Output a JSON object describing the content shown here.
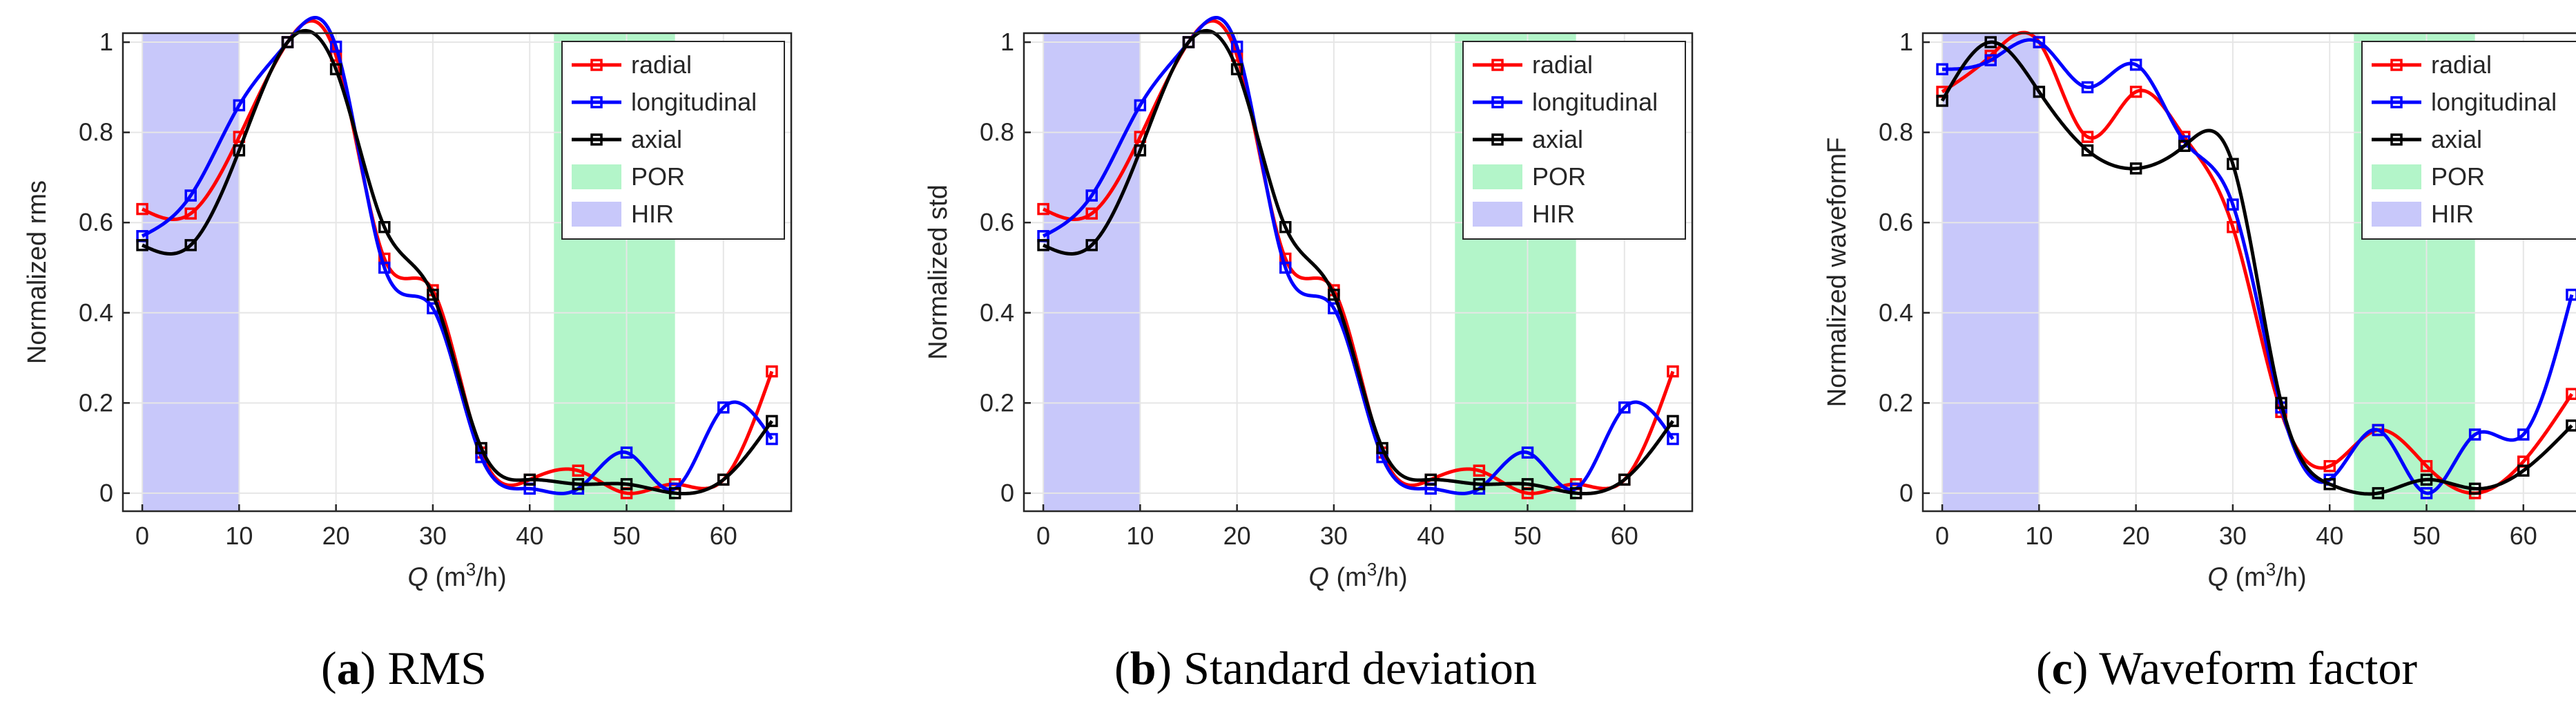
{
  "figure": {
    "colors": {
      "radial": "#ff0000",
      "longitudinal": "#0000ff",
      "axial": "#000000",
      "POR": "#b3f5c9",
      "HIR": "#c8c8fa",
      "grid": "#e6e6e6",
      "axis": "#262626"
    }
  },
  "chart_data": [
    {
      "type": "line",
      "panel": "a",
      "caption_letter": "a",
      "caption_text": ") RMS",
      "caption_open": "(",
      "ylabel": "Normalized rms",
      "xlabel_main": "Q",
      "xlabel_unit_open": " (m",
      "xlabel_sup": "3",
      "xlabel_unit_close": "/h)",
      "xlim": [
        -2,
        67
      ],
      "ylim": [
        -0.04,
        1.02
      ],
      "xticks": [
        0,
        10,
        20,
        30,
        40,
        50,
        60
      ],
      "yticks": [
        0,
        0.2,
        0.4,
        0.6,
        0.8,
        1
      ],
      "ytick_labels": [
        "0",
        "0.2",
        "0.4",
        "0.6",
        "0.8",
        "1"
      ],
      "x": [
        0,
        5,
        10,
        15,
        20,
        25,
        30,
        35,
        40,
        45,
        50,
        55,
        60,
        65
      ],
      "regions": [
        {
          "name": "HIR",
          "range": [
            0,
            10
          ]
        },
        {
          "name": "POR",
          "range": [
            42.5,
            55
          ]
        }
      ],
      "series": [
        {
          "name": "radial",
          "values": [
            0.63,
            0.62,
            0.79,
            1.0,
            0.97,
            0.52,
            0.45,
            0.09,
            0.03,
            0.05,
            0.0,
            0.02,
            0.03,
            0.27
          ]
        },
        {
          "name": "longitudinal",
          "values": [
            0.57,
            0.66,
            0.86,
            1.0,
            0.99,
            0.5,
            0.41,
            0.08,
            0.01,
            0.01,
            0.09,
            0.01,
            0.19,
            0.12
          ]
        },
        {
          "name": "axial",
          "values": [
            0.55,
            0.55,
            0.76,
            1.0,
            0.94,
            0.59,
            0.44,
            0.1,
            0.03,
            0.02,
            0.02,
            0.0,
            0.03,
            0.16
          ]
        }
      ],
      "legend": [
        "radial",
        "longitudinal",
        "axial",
        "POR",
        "HIR"
      ],
      "legend_position": "top-right"
    },
    {
      "type": "line",
      "panel": "b",
      "caption_letter": "b",
      "caption_text": ") Standard deviation",
      "caption_open": "(",
      "ylabel": "Normalized std",
      "xlabel_main": "Q",
      "xlabel_unit_open": " (m",
      "xlabel_sup": "3",
      "xlabel_unit_close": "/h)",
      "xlim": [
        -2,
        67
      ],
      "ylim": [
        -0.04,
        1.02
      ],
      "xticks": [
        0,
        10,
        20,
        30,
        40,
        50,
        60
      ],
      "yticks": [
        0,
        0.2,
        0.4,
        0.6,
        0.8,
        1
      ],
      "ytick_labels": [
        "0",
        "0.2",
        "0.4",
        "0.6",
        "0.8",
        "1"
      ],
      "x": [
        0,
        5,
        10,
        15,
        20,
        25,
        30,
        35,
        40,
        45,
        50,
        55,
        60,
        65
      ],
      "regions": [
        {
          "name": "HIR",
          "range": [
            0,
            10
          ]
        },
        {
          "name": "POR",
          "range": [
            42.5,
            55
          ]
        }
      ],
      "series": [
        {
          "name": "radial",
          "values": [
            0.63,
            0.62,
            0.79,
            1.0,
            0.97,
            0.52,
            0.45,
            0.09,
            0.03,
            0.05,
            0.0,
            0.02,
            0.03,
            0.27
          ]
        },
        {
          "name": "longitudinal",
          "values": [
            0.57,
            0.66,
            0.86,
            1.0,
            0.99,
            0.5,
            0.41,
            0.08,
            0.01,
            0.01,
            0.09,
            0.01,
            0.19,
            0.12
          ]
        },
        {
          "name": "axial",
          "values": [
            0.55,
            0.55,
            0.76,
            1.0,
            0.94,
            0.59,
            0.44,
            0.1,
            0.03,
            0.02,
            0.02,
            0.0,
            0.03,
            0.16
          ]
        }
      ],
      "legend": [
        "radial",
        "longitudinal",
        "axial",
        "POR",
        "HIR"
      ],
      "legend_position": "top-right"
    },
    {
      "type": "line",
      "panel": "c",
      "caption_letter": "c",
      "caption_text": ") Waveform factor",
      "caption_open": "(",
      "ylabel": "Normalized waveformF",
      "xlabel_main": "Q",
      "xlabel_unit_open": " (m",
      "xlabel_sup": "3",
      "xlabel_unit_close": "/h)",
      "xlim": [
        -2,
        67
      ],
      "ylim": [
        -0.04,
        1.02
      ],
      "xticks": [
        0,
        10,
        20,
        30,
        40,
        50,
        60
      ],
      "yticks": [
        0,
        0.2,
        0.4,
        0.6,
        0.8,
        1
      ],
      "ytick_labels": [
        "0",
        "0.2",
        "0.4",
        "0.6",
        "0.8",
        "1"
      ],
      "x": [
        0,
        5,
        10,
        15,
        20,
        25,
        30,
        35,
        40,
        45,
        50,
        55,
        60,
        65
      ],
      "regions": [
        {
          "name": "HIR",
          "range": [
            0,
            10
          ]
        },
        {
          "name": "POR",
          "range": [
            42.5,
            55
          ]
        }
      ],
      "series": [
        {
          "name": "radial",
          "values": [
            0.89,
            0.97,
            1.0,
            0.79,
            0.89,
            0.79,
            0.59,
            0.18,
            0.06,
            0.14,
            0.06,
            0.0,
            0.07,
            0.22
          ]
        },
        {
          "name": "longitudinal",
          "values": [
            0.94,
            0.96,
            1.0,
            0.9,
            0.95,
            0.78,
            0.64,
            0.19,
            0.03,
            0.14,
            0.0,
            0.13,
            0.13,
            0.44
          ]
        },
        {
          "name": "axial",
          "values": [
            0.87,
            1.0,
            0.89,
            0.76,
            0.72,
            0.77,
            0.73,
            0.2,
            0.02,
            0.0,
            0.03,
            0.01,
            0.05,
            0.15
          ]
        }
      ],
      "legend": [
        "radial",
        "longitudinal",
        "axial",
        "POR",
        "HIR"
      ],
      "legend_position": "top-right"
    }
  ]
}
